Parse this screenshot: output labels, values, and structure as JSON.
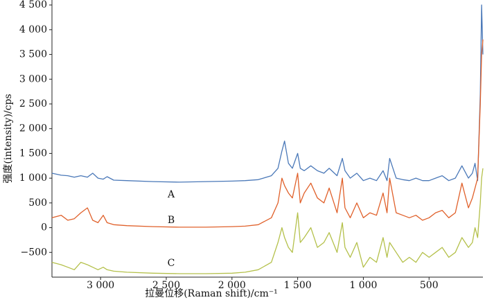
{
  "chart_data": {
    "type": "line",
    "xlabel": "拉曼位移(Raman shift)/cm⁻¹",
    "ylabel": "强度(intensity)/cps",
    "annotations": [
      "A",
      "B",
      "C"
    ],
    "xlim": [
      3370,
      90
    ],
    "ylim": [
      -1000,
      4600
    ],
    "xticks": [
      {
        "value": 3000,
        "label": "3 000"
      },
      {
        "value": 2500,
        "label": "2 500"
      },
      {
        "value": 2000,
        "label": "2 000"
      },
      {
        "value": 1500,
        "label": "1 500"
      },
      {
        "value": 1000,
        "label": "1 000"
      },
      500
    ],
    "yticks": [
      {
        "value": -500,
        "label": "−500"
      },
      0,
      500,
      {
        "value": 1000,
        "label": "1 000"
      },
      {
        "value": 1500,
        "label": "1 500"
      },
      {
        "value": 2000,
        "label": "2 000"
      },
      {
        "value": 2500,
        "label": "2 500"
      },
      {
        "value": 3000,
        "label": "3 000"
      },
      {
        "value": 3500,
        "label": "3 500"
      },
      {
        "value": 4000,
        "label": "4 000"
      },
      {
        "value": 4500,
        "label": "4 500"
      }
    ],
    "x": [
      3370,
      3300,
      3250,
      3200,
      3150,
      3100,
      3060,
      3020,
      2980,
      2950,
      2900,
      2800,
      2600,
      2400,
      2200,
      2000,
      1900,
      1800,
      1700,
      1650,
      1620,
      1600,
      1570,
      1540,
      1500,
      1480,
      1450,
      1400,
      1350,
      1300,
      1260,
      1200,
      1160,
      1140,
      1100,
      1050,
      1000,
      950,
      900,
      850,
      820,
      800,
      750,
      700,
      650,
      600,
      550,
      500,
      450,
      400,
      350,
      300,
      250,
      200,
      170,
      150,
      130,
      110,
      100,
      90
    ],
    "series": [
      {
        "name": "A",
        "color": "#4a78b8",
        "values": [
          1100,
          1060,
          1050,
          1020,
          1050,
          1020,
          1100,
          1000,
          980,
          1030,
          960,
          950,
          930,
          920,
          930,
          940,
          950,
          970,
          1050,
          1200,
          1550,
          1750,
          1300,
          1200,
          1500,
          1200,
          1150,
          1250,
          1150,
          1100,
          1200,
          1050,
          1400,
          1150,
          1000,
          1100,
          950,
          1000,
          950,
          1150,
          950,
          1400,
          1000,
          970,
          950,
          1000,
          950,
          950,
          1000,
          1050,
          950,
          1000,
          1250,
          1000,
          1100,
          1300,
          950,
          2700,
          4500,
          3500
        ]
      },
      {
        "name": "B",
        "color": "#e0602a",
        "values": [
          200,
          250,
          150,
          180,
          300,
          400,
          150,
          100,
          250,
          100,
          60,
          40,
          20,
          10,
          10,
          20,
          30,
          60,
          200,
          500,
          1000,
          850,
          700,
          600,
          1100,
          500,
          700,
          900,
          600,
          500,
          800,
          300,
          1000,
          400,
          200,
          500,
          200,
          300,
          250,
          700,
          300,
          1000,
          300,
          250,
          200,
          250,
          150,
          200,
          300,
          350,
          200,
          300,
          900,
          400,
          600,
          800,
          1000,
          2500,
          3500,
          3800
        ]
      },
      {
        "name": "C",
        "color": "#b4c04a",
        "values": [
          -700,
          -750,
          -800,
          -850,
          -700,
          -750,
          -800,
          -850,
          -800,
          -850,
          -880,
          -900,
          -920,
          -930,
          -930,
          -920,
          -900,
          -850,
          -700,
          -300,
          0,
          -200,
          -400,
          -500,
          300,
          -300,
          -200,
          0,
          -400,
          -300,
          -100,
          -500,
          100,
          -400,
          -600,
          -300,
          -800,
          -600,
          -700,
          -200,
          -600,
          -300,
          -500,
          -700,
          -600,
          -700,
          -500,
          -600,
          -500,
          -400,
          -600,
          -500,
          -200,
          -400,
          -300,
          0,
          -200,
          500,
          1000,
          1200
        ]
      }
    ]
  }
}
